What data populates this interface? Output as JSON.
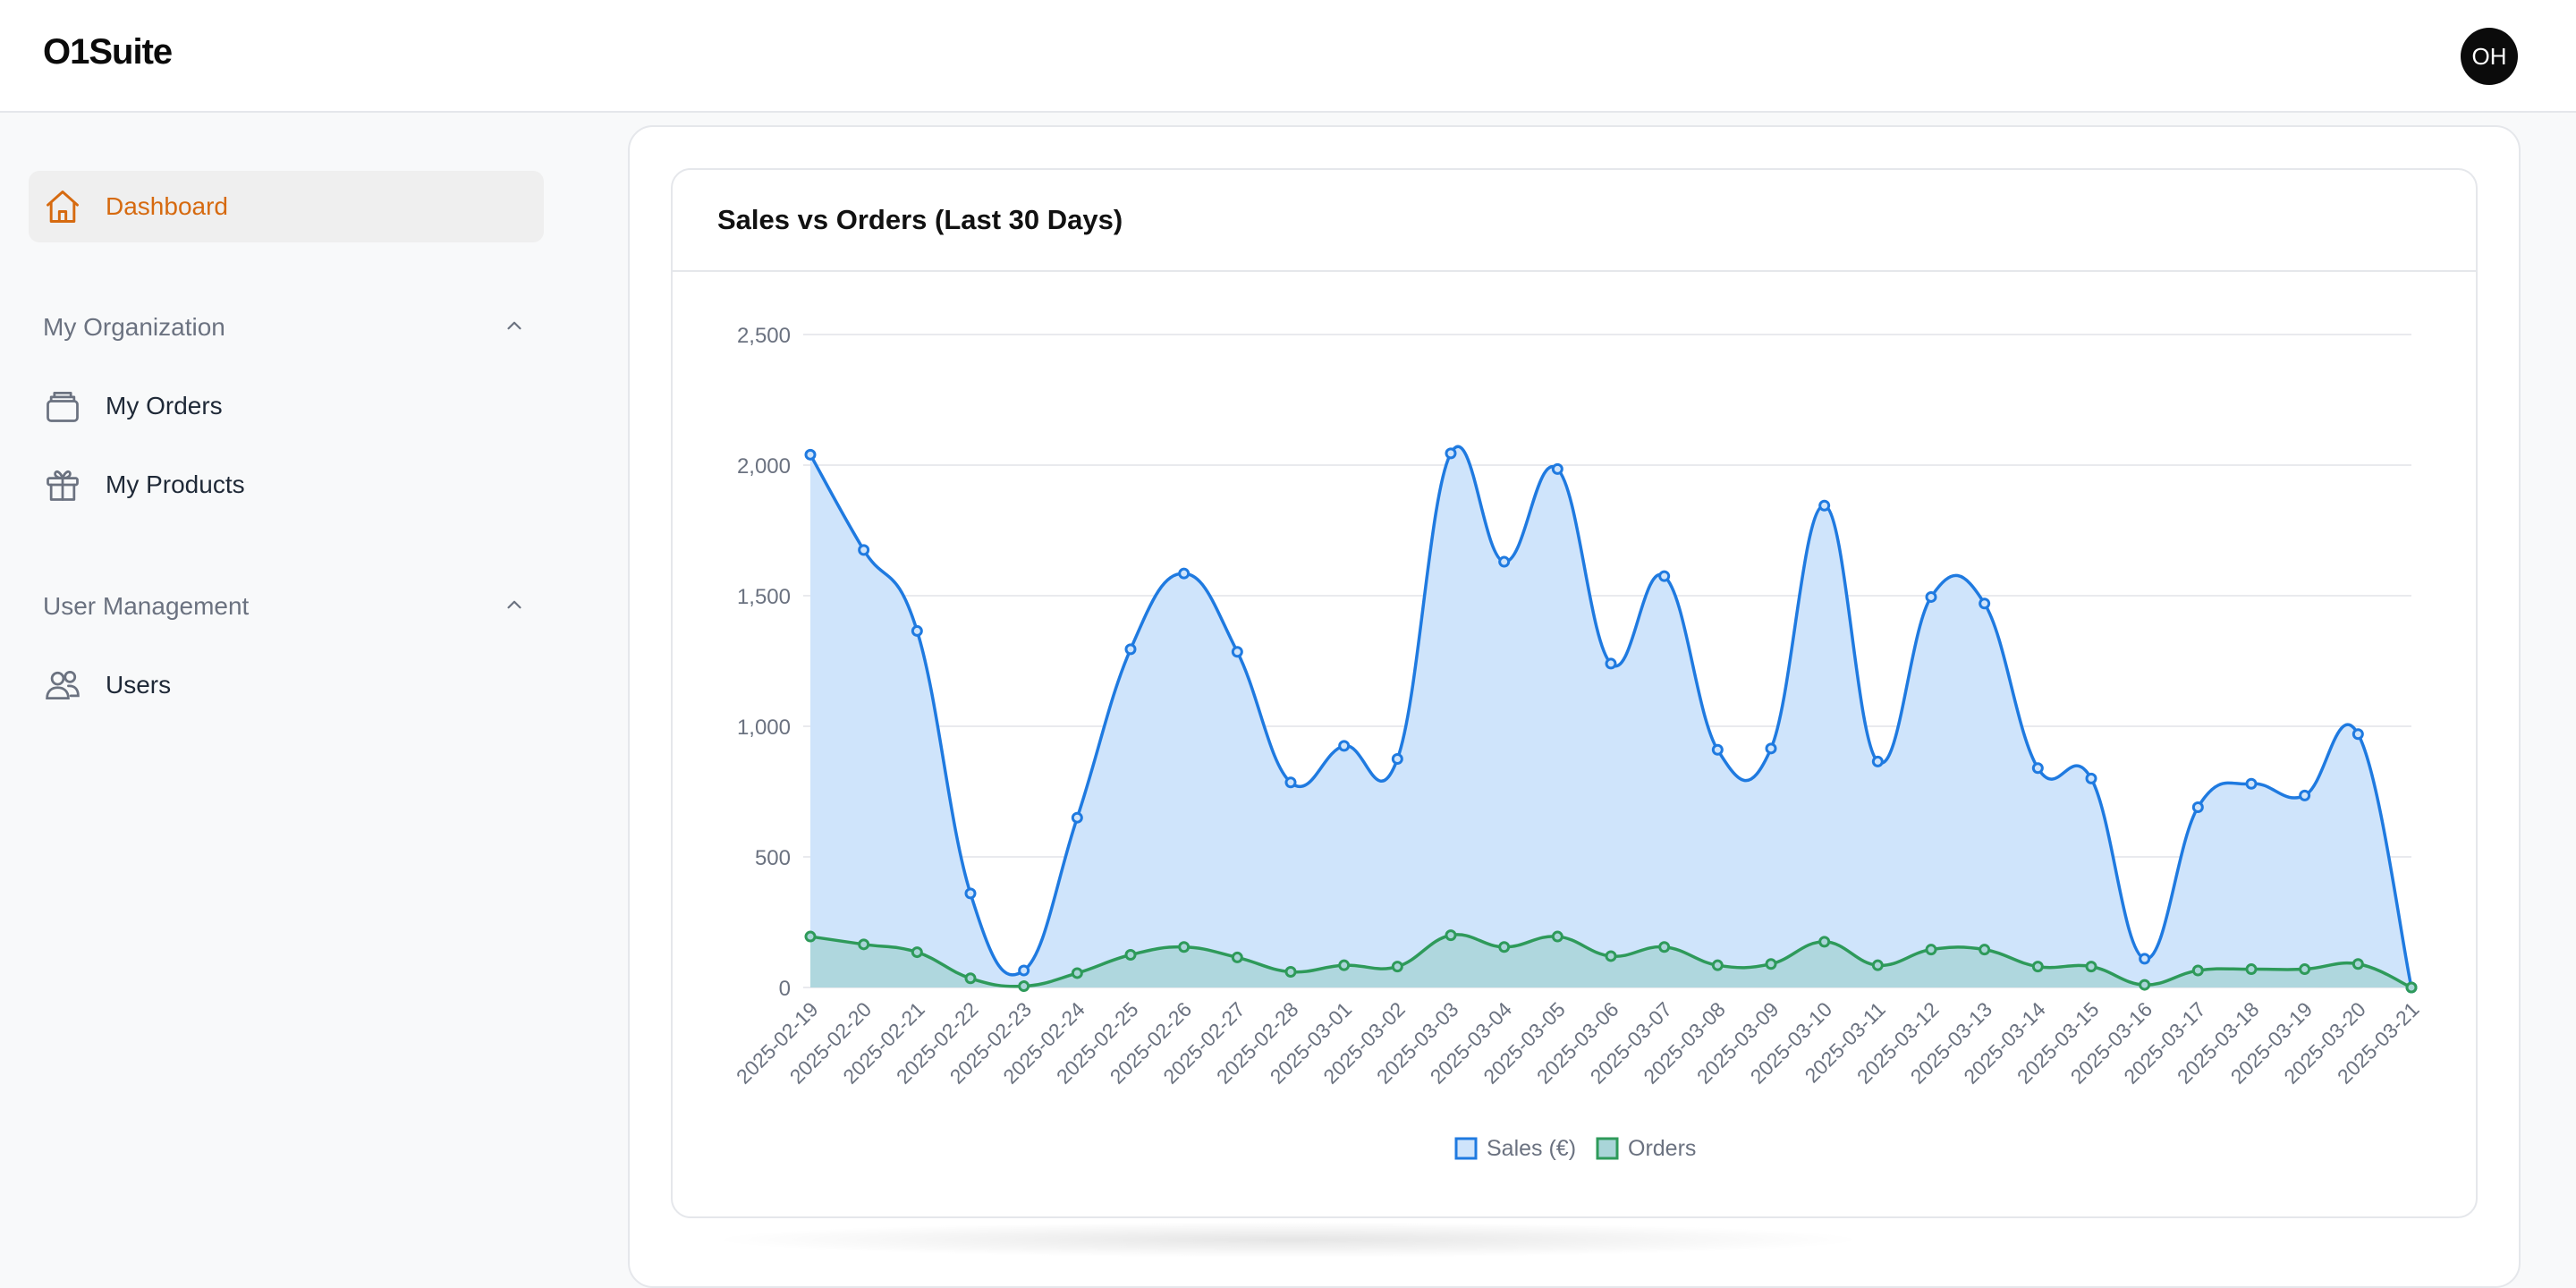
{
  "app": {
    "logo": "O1Suite",
    "user_initials": "OH"
  },
  "sidebar": {
    "dashboard": {
      "label": "Dashboard",
      "icon": "home-icon",
      "active": true
    },
    "sections": [
      {
        "title": "My Organization",
        "items": [
          {
            "label": "My Orders",
            "icon": "box-icon"
          },
          {
            "label": "My Products",
            "icon": "gift-icon"
          }
        ]
      },
      {
        "title": "User Management",
        "items": [
          {
            "label": "Users",
            "icon": "users-icon"
          }
        ]
      }
    ]
  },
  "card": {
    "title": "Sales vs Orders (Last 30 Days)"
  },
  "colors": {
    "accent": "#d66a10",
    "sales_line": "#1f7ae0",
    "sales_fill": "#cfe4fb",
    "orders_line": "#2e9a5a",
    "orders_fill": "#a9d5d8"
  },
  "chart_data": {
    "type": "area",
    "x": [
      "2025-02-19",
      "2025-02-20",
      "2025-02-21",
      "2025-02-22",
      "2025-02-23",
      "2025-02-24",
      "2025-02-25",
      "2025-02-26",
      "2025-02-27",
      "2025-02-28",
      "2025-03-01",
      "2025-03-02",
      "2025-03-03",
      "2025-03-04",
      "2025-03-05",
      "2025-03-06",
      "2025-03-07",
      "2025-03-08",
      "2025-03-09",
      "2025-03-10",
      "2025-03-11",
      "2025-03-12",
      "2025-03-13",
      "2025-03-14",
      "2025-03-15",
      "2025-03-16",
      "2025-03-17",
      "2025-03-18",
      "2025-03-19",
      "2025-03-20",
      "2025-03-21"
    ],
    "series": [
      {
        "name": "Sales (€)",
        "values": [
          2040,
          1675,
          1365,
          360,
          65,
          650,
          1295,
          1585,
          1285,
          785,
          925,
          875,
          2045,
          1630,
          1985,
          1240,
          1575,
          910,
          915,
          1845,
          865,
          1495,
          1470,
          840,
          800,
          110,
          690,
          780,
          735,
          970,
          0
        ]
      },
      {
        "name": "Orders",
        "values": [
          195,
          165,
          135,
          35,
          5,
          55,
          125,
          155,
          115,
          60,
          85,
          80,
          200,
          155,
          195,
          120,
          155,
          85,
          90,
          175,
          85,
          145,
          145,
          80,
          80,
          10,
          65,
          70,
          70,
          90,
          0
        ]
      }
    ],
    "ylim": [
      0,
      2500
    ],
    "yticks": [
      0,
      500,
      1000,
      1500,
      2000,
      2500
    ],
    "ytick_labels": [
      "0",
      "500",
      "1,000",
      "1,500",
      "2,000",
      "2,500"
    ],
    "grid": true,
    "legend": "bottom-center"
  }
}
